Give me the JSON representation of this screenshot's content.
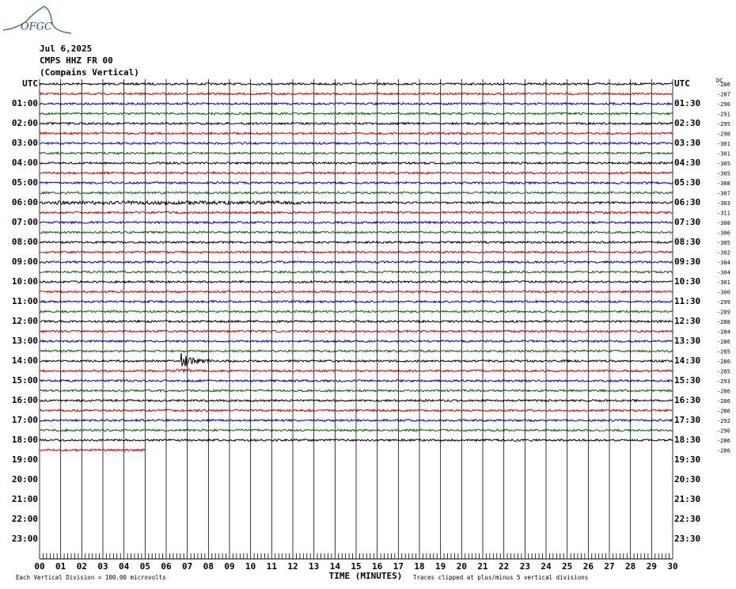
{
  "header": {
    "logo": "OFGC",
    "date": "Jul 6,2025",
    "station": "CMPS HHZ FR 00",
    "location": "(Compains Vertical)"
  },
  "left_labels": [
    "UTC",
    "01:00",
    "02:00",
    "03:00",
    "04:00",
    "05:00",
    "06:00",
    "07:00",
    "08:00",
    "09:00",
    "10:00",
    "11:00",
    "12:00",
    "13:00",
    "14:00",
    "15:00",
    "16:00",
    "17:00",
    "18:00",
    "19:00",
    "20:00",
    "21:00",
    "22:00",
    "23:00"
  ],
  "right_labels": [
    "UTC",
    "01:30",
    "02:30",
    "03:30",
    "04:30",
    "05:30",
    "06:30",
    "07:30",
    "08:30",
    "09:30",
    "10:30",
    "11:30",
    "12:30",
    "13:30",
    "14:30",
    "15:30",
    "16:30",
    "17:30",
    "18:30",
    "19:30",
    "20:30",
    "21:30",
    "22:30",
    "23:30"
  ],
  "dc_header": "DC",
  "dc_values": [
    -286,
    -287,
    -290,
    -291,
    -295,
    -298,
    -301,
    -301,
    -305,
    -305,
    -308,
    -307,
    -303,
    -311,
    -308,
    -306,
    -305,
    -302,
    -304,
    -304,
    -301,
    -300,
    -299,
    -289,
    -288,
    -284,
    -286,
    -285,
    -286,
    -285,
    -293,
    -286,
    -286,
    -286,
    -292,
    -290,
    -286,
    -286
  ],
  "x_labels": [
    "00",
    "01",
    "02",
    "03",
    "04",
    "05",
    "06",
    "07",
    "08",
    "09",
    "10",
    "11",
    "12",
    "13",
    "14",
    "15",
    "16",
    "17",
    "18",
    "19",
    "20",
    "21",
    "22",
    "23",
    "24",
    "25",
    "26",
    "27",
    "28",
    "29",
    "30"
  ],
  "footer": {
    "scale": "Each Vertical Division =  100.00 microvolts",
    "x_title": "TIME (MINUTES)",
    "clip_note": "Traces clipped at plus/minus 5 vertical divisions"
  }
}
